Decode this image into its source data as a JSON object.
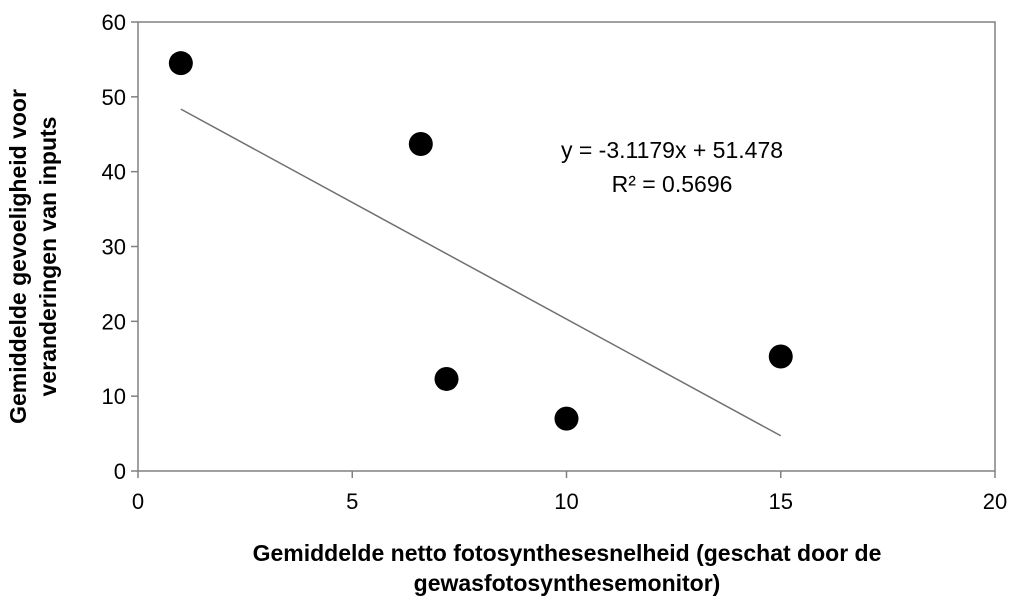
{
  "chart_data": {
    "type": "scatter",
    "points": [
      {
        "x": 1,
        "y": 54.5
      },
      {
        "x": 6.6,
        "y": 43.7
      },
      {
        "x": 7.2,
        "y": 12.3
      },
      {
        "x": 10,
        "y": 7
      },
      {
        "x": 15,
        "y": 15.3
      }
    ],
    "trendline": {
      "type": "linear",
      "slope": -3.1179,
      "intercept": 51.478,
      "x_range": [
        1,
        15
      ]
    },
    "equation_label": "y = -3.1179x + 51.478",
    "r_squared_label": "R² = 0.5696",
    "xlabel": "Gemiddelde netto fotosynthesesnelheid (geschat door de gewasfotosynthesemonitor)",
    "xlabel_lines": [
      "Gemiddelde netto fotosynthesesnelheid (geschat door de",
      "gewasfotosynthesemonitor)"
    ],
    "ylabel": "Gemiddelde gevoeligheid voor veranderingen van inputs",
    "ylabel_lines": [
      "Gemiddelde gevoeligheid voor",
      "veranderingen van inputs"
    ],
    "xlim": [
      0,
      20
    ],
    "ylim": [
      0,
      60
    ],
    "xticks": [
      0,
      5,
      10,
      15,
      20
    ],
    "yticks": [
      0,
      10,
      20,
      30,
      40,
      50,
      60
    ],
    "grid": false,
    "legend": false,
    "colors": {
      "marker": "#000000",
      "trendline": "#707070",
      "axis": "#808080"
    }
  }
}
